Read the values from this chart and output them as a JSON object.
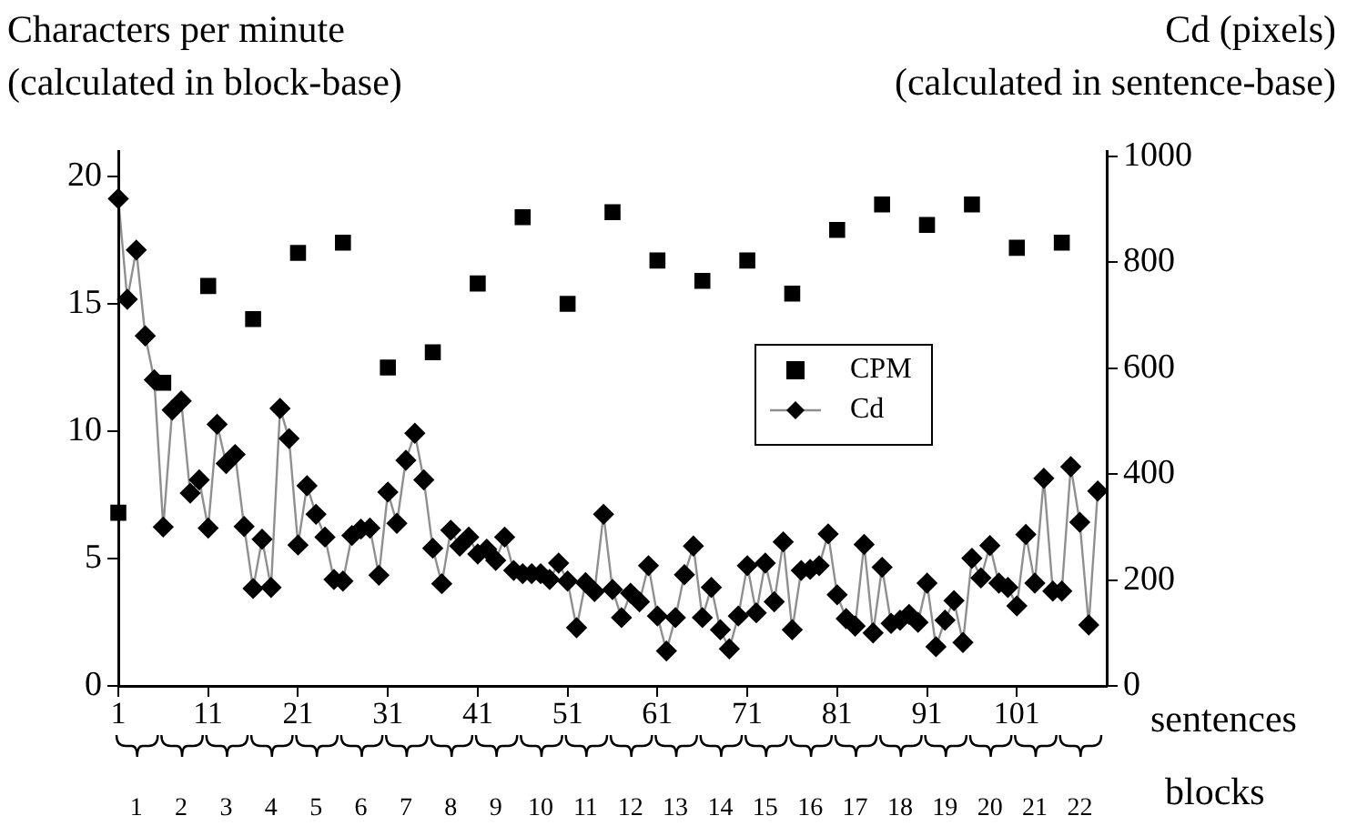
{
  "chart_data": {
    "type": "line",
    "ylabel": "Characters per minute\n(calculated in block-base)",
    "y2label": "Cd (pixels)\n(calculated in sentence-base)",
    "xlabel": "sentences",
    "x2label": "blocks",
    "xlim": [
      1,
      111
    ],
    "xticks": [
      1,
      11,
      21,
      31,
      41,
      51,
      61,
      71,
      81,
      91,
      101
    ],
    "x2lim": [
      0.6,
      22.6
    ],
    "x2ticks": [
      1,
      2,
      3,
      4,
      5,
      6,
      7,
      8,
      9,
      10,
      11,
      12,
      13,
      14,
      15,
      16,
      17,
      18,
      19,
      20,
      21,
      22
    ],
    "ylim": [
      0,
      21
    ],
    "yticks": [
      0,
      5,
      10,
      15,
      20
    ],
    "y2lim": [
      0,
      1010
    ],
    "y2ticks": [
      0,
      200,
      400,
      600,
      800,
      1000
    ],
    "legend": "right",
    "grid": false,
    "series": [
      {
        "name": "CPM",
        "type": "scatter",
        "marker": "square",
        "color": "#000000",
        "x": [
          1,
          6,
          11,
          16,
          21,
          26,
          31,
          36,
          41,
          46,
          51,
          56,
          61,
          66,
          71,
          76,
          81,
          86,
          91,
          96,
          101,
          106
        ],
        "values": [
          6.8,
          11.9,
          15.7,
          14.4,
          17.0,
          17.4,
          12.5,
          13.1,
          15.8,
          18.4,
          15.0,
          18.6,
          16.7,
          15.9,
          16.7,
          15.4,
          17.9,
          18.9,
          18.1,
          18.9,
          17.2,
          17.4
        ]
      },
      {
        "name": "Cd",
        "type": "line",
        "axis": "y2",
        "marker": "diamond",
        "color": "#000000",
        "x": [
          1,
          2,
          3,
          4,
          5,
          6,
          7,
          8,
          9,
          10,
          11,
          12,
          13,
          14,
          15,
          16,
          17,
          18,
          19,
          20,
          21,
          22,
          23,
          24,
          25,
          26,
          27,
          28,
          29,
          30,
          31,
          32,
          33,
          34,
          35,
          36,
          37,
          38,
          39,
          40,
          41,
          42,
          43,
          44,
          45,
          46,
          47,
          48,
          49,
          50,
          51,
          52,
          53,
          54,
          55,
          56,
          57,
          58,
          59,
          60,
          61,
          62,
          63,
          64,
          65,
          66,
          67,
          68,
          69,
          70,
          71,
          72,
          73,
          74,
          75,
          76,
          77,
          78,
          79,
          80,
          81,
          82,
          83,
          84,
          85,
          86,
          87,
          88,
          89,
          90,
          91,
          92,
          93,
          94,
          95,
          96,
          97,
          98,
          99,
          100,
          101,
          102,
          103,
          104,
          105,
          106,
          107,
          108,
          109,
          110
        ],
        "values": [
          920,
          730,
          823,
          661,
          578,
          300,
          521,
          538,
          364,
          389,
          298,
          494,
          420,
          437,
          301,
          184,
          277,
          186,
          524,
          467,
          266,
          378,
          324,
          281,
          201,
          198,
          284,
          296,
          298,
          209,
          366,
          307,
          426,
          477,
          389,
          260,
          193,
          294,
          264,
          281,
          249,
          258,
          237,
          281,
          218,
          212,
          212,
          212,
          201,
          232,
          198,
          110,
          195,
          178,
          324,
          182,
          129,
          175,
          159,
          227,
          132,
          66,
          129,
          210,
          264,
          129,
          186,
          106,
          70,
          132,
          227,
          138,
          232,
          159,
          272,
          106,
          218,
          220,
          227,
          287,
          172,
          127,
          113,
          267,
          100,
          224,
          118,
          124,
          135,
          120,
          194,
          74,
          124,
          161,
          82,
          241,
          204,
          265,
          194,
          186,
          151,
          286,
          194,
          392,
          179,
          179,
          414,
          309,
          115,
          368
        ]
      }
    ]
  }
}
